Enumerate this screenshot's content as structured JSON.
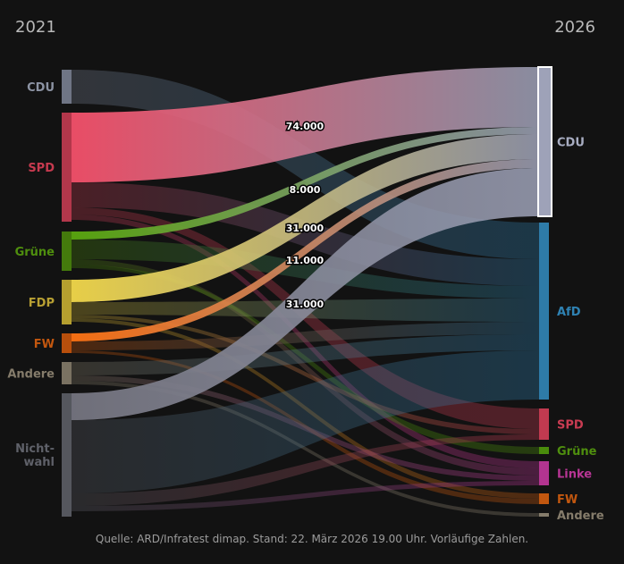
{
  "chart_data": {
    "type": "sankey",
    "left_year": "2021",
    "right_year": "2026",
    "source_note": "Quelle: ARD/Infratest dimap. Stand: 22. März 2026 19.00 Uhr. Vorläufige Zahlen.",
    "left_nodes": [
      {
        "id": "CDU",
        "label": "CDU",
        "color": "#6f7585",
        "label_color": "#8c93a3"
      },
      {
        "id": "SPD",
        "label": "SPD",
        "color": "#b3374b",
        "label_color": "#c73a4f"
      },
      {
        "id": "Gruene",
        "label": "Grüne",
        "color": "#447a0c",
        "label_color": "#4f8f0e"
      },
      {
        "id": "FDP",
        "label": "FDP",
        "color": "#b59f2f",
        "label_color": "#b8a033"
      },
      {
        "id": "FW",
        "label": "FW",
        "color": "#b84f0c",
        "label_color": "#c2570f"
      },
      {
        "id": "Andere",
        "label": "Andere",
        "color": "#7a7262",
        "label_color": "#857c6b"
      },
      {
        "id": "Nichtwahl",
        "label": "Nicht-\nwahl",
        "label_lines": [
          "Nicht-",
          "wahl"
        ],
        "color": "#55575e",
        "label_color": "#5f6169"
      }
    ],
    "right_nodes": [
      {
        "id": "CDU",
        "label": "CDU",
        "color": "#9ea2b8",
        "label_color": "#a8adc2",
        "highlight": true
      },
      {
        "id": "AfD",
        "label": "AfD",
        "color": "#2e7ba8",
        "label_color": "#2f82b3"
      },
      {
        "id": "SPD",
        "label": "SPD",
        "color": "#c13a50",
        "label_color": "#c93c52"
      },
      {
        "id": "Gruene",
        "label": "Grüne",
        "color": "#4a8c0c",
        "label_color": "#4f8f0e"
      },
      {
        "id": "Linke",
        "label": "Linke",
        "color": "#b33490",
        "label_color": "#b83595"
      },
      {
        "id": "FW",
        "label": "FW",
        "color": "#c2570f",
        "label_color": "#c2570f"
      },
      {
        "id": "Andere",
        "label": "Andere",
        "color": "#857c6b",
        "label_color": "#857c6b"
      }
    ],
    "highlighted_flows": [
      {
        "from": "SPD",
        "to": "CDU",
        "value": 74000,
        "label": "74.000",
        "color": "#f4506a"
      },
      {
        "from": "Gruene",
        "to": "CDU",
        "value": 8000,
        "label": "8.000",
        "color": "#5aa80e"
      },
      {
        "from": "FDP",
        "to": "CDU",
        "value": 31000,
        "label": "31.000",
        "color": "#f2d84a"
      },
      {
        "from": "FW",
        "to": "CDU",
        "value": 11000,
        "label": "11.000",
        "color": "#ff7212"
      },
      {
        "from": "Nichtwahl",
        "to": "CDU",
        "value": 31000,
        "label": "31.000",
        "color": "#74747f"
      }
    ]
  }
}
